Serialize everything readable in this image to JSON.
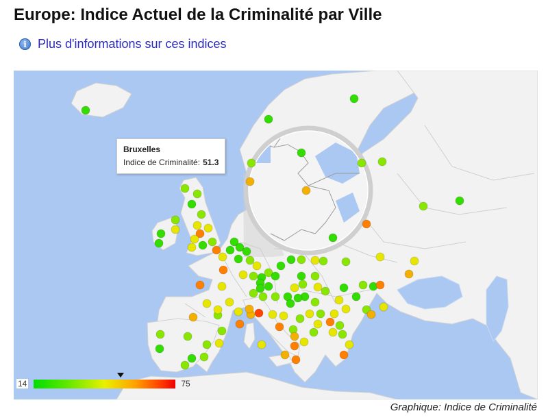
{
  "title": "Europe: Indice Actuel de la Criminalité par Ville",
  "info_link": "Plus d'informations sur ces indices",
  "info_icon": "info-icon",
  "tooltip": {
    "city": "Bruxelles",
    "label": "Indice de Criminalité:",
    "value": "51.3"
  },
  "legend": {
    "min": "14",
    "max": "75",
    "marker_value": 51.3,
    "color_low": "#00dd00",
    "color_high": "#ee0000"
  },
  "caption": "Graphique: Indice de Criminalité",
  "colors": {
    "water": "#aac8f2",
    "land": "#f2f2f2",
    "border": "#c8c8c8"
  }
}
